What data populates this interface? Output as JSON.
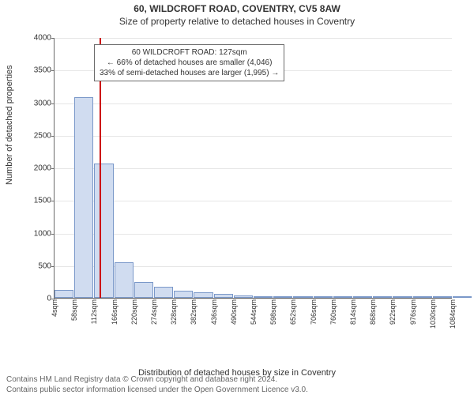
{
  "title_main": "60, WILDCROFT ROAD, COVENTRY, CV5 8AW",
  "title_sub": "Size of property relative to detached houses in Coventry",
  "y_axis_label": "Number of detached properties",
  "x_axis_label": "Distribution of detached houses by size in Coventry",
  "chart": {
    "type": "histogram",
    "background_color": "#ffffff",
    "grid_color": "#e6e6e6",
    "axis_color": "#6b6b6b",
    "bar_fill": "#d0dcf0",
    "bar_border": "#7a98c9",
    "marker_color": "#cc0000",
    "ylim": [
      0,
      4000
    ],
    "yticks": [
      0,
      500,
      1000,
      1500,
      2000,
      2500,
      3000,
      3500,
      4000
    ],
    "x_min_sqm": 4,
    "x_step_sqm": 27,
    "bar_bin_sqm": 54,
    "xtick_labels_sqm": [
      4,
      58,
      112,
      166,
      220,
      274,
      328,
      382,
      436,
      490,
      544,
      598,
      652,
      706,
      760,
      814,
      868,
      922,
      976,
      1030,
      1084
    ],
    "bars_values": [
      120,
      3080,
      2060,
      540,
      240,
      170,
      110,
      90,
      60,
      40,
      30,
      25,
      22,
      18,
      15,
      12,
      10,
      8,
      6,
      5,
      4
    ],
    "marker_sqm": 127
  },
  "callout": {
    "line1": "60 WILDCROFT ROAD: 127sqm",
    "line2": "← 66% of detached houses are smaller (4,046)",
    "line3": "33% of semi-detached houses are larger (1,995) →"
  },
  "attribution": {
    "line1": "Contains HM Land Registry data © Crown copyright and database right 2024.",
    "line2": "Contains public sector information licensed under the Open Government Licence v3.0."
  },
  "fonts": {
    "title_fontsize": 12,
    "axis_label_fontsize": 11,
    "tick_fontsize": 10,
    "callout_fontsize": 10,
    "attribution_fontsize": 10
  }
}
